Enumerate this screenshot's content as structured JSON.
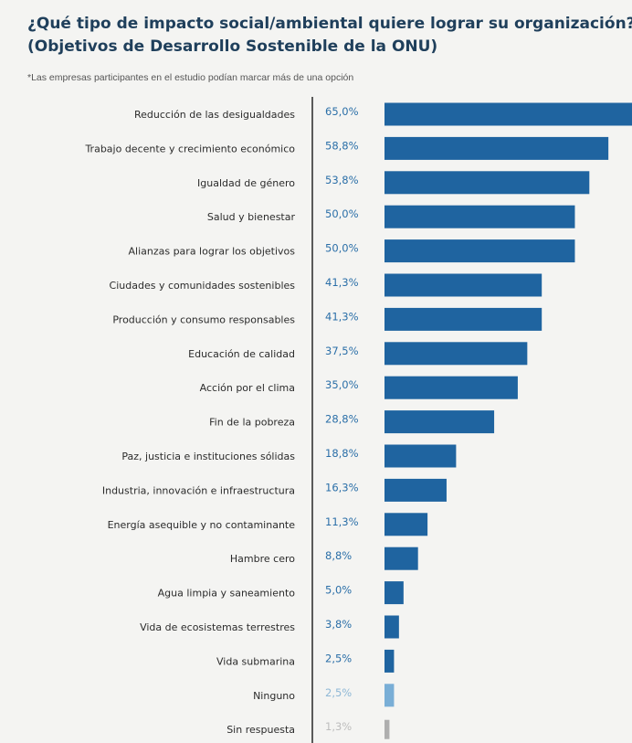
{
  "header": {
    "title_line1": "¿Qué tipo de impacto social/ambiental quiere lograr su organización?",
    "title_line2": "(Objetivos de Desarrollo Sostenible de la ONU)",
    "note": "*Las empresas participantes en el estudio podían marcar más de una opción"
  },
  "chart_data": {
    "type": "bar",
    "orientation": "horizontal",
    "title": "¿Qué tipo de impacto social/ambiental quiere lograr su organización? (Objetivos de Desarrollo Sostenible de la ONU)",
    "subtitle": "*Las empresas participantes en el estudio podían marcar más de una opción",
    "xlim": [
      0,
      65
    ],
    "grid": false,
    "categories": [
      "Reducción de las desigualdades",
      "Trabajo decente y crecimiento económico",
      "Igualdad de género",
      "Salud y bienestar",
      "Alianzas para lograr los objetivos",
      "Ciudades y comunidades sostenibles",
      "Producción y consumo responsables",
      "Educación de calidad",
      "Acción por el clima",
      "Fin de la pobreza",
      "Paz, justicia e instituciones sólidas",
      "Industria, innovación e infraestructura",
      "Energía asequible y no contaminante",
      "Hambre cero",
      "Agua limpia y saneamiento",
      "Vida de ecosistemas terrestres",
      "Vida submarina",
      "Ninguno",
      "Sin respuesta"
    ],
    "values": [
      65.0,
      58.8,
      53.8,
      50.0,
      50.0,
      41.3,
      41.3,
      37.5,
      35.0,
      28.8,
      18.8,
      16.3,
      11.3,
      8.8,
      5.0,
      3.8,
      2.5,
      2.5,
      1.3
    ],
    "value_labels": [
      "65,0%",
      "58,8%",
      "53,8%",
      "50,0%",
      "50,0%",
      "41,3%",
      "41,3%",
      "37,5%",
      "35,0%",
      "28,8%",
      "18,8%",
      "16,3%",
      "11,3%",
      "8,8%",
      "5,0%",
      "3,8%",
      "2,5%",
      "2,5%",
      "1,3%"
    ],
    "colors": {
      "main": "#1f64a0",
      "ninguno": "#79aed6",
      "sin_respuesta": "#aeaeae",
      "label_main": "#2b6fa8",
      "label_ninguno": "#8fb8d6",
      "label_sin_respuesta": "#bdbdbd",
      "axis": "#333333"
    }
  }
}
